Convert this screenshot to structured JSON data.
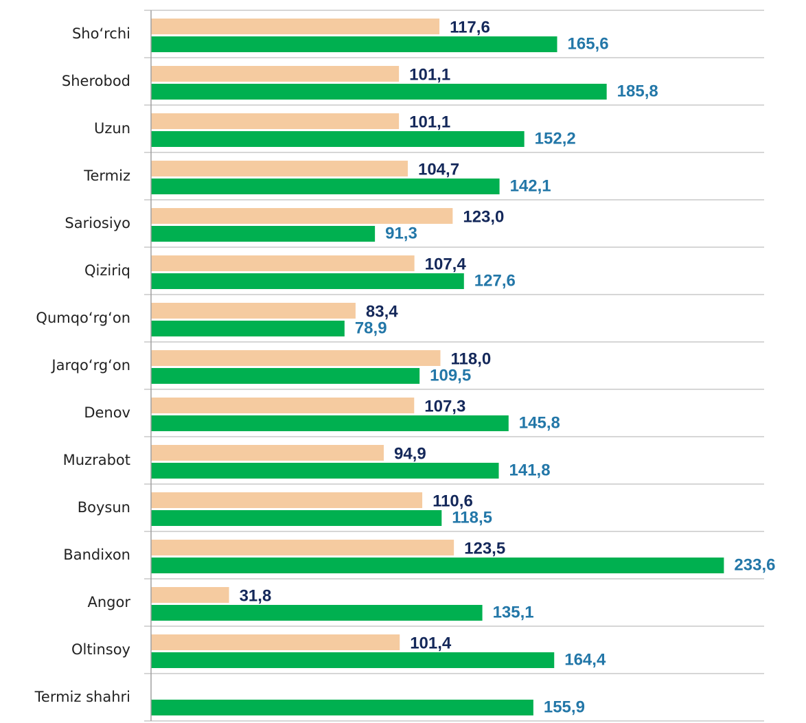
{
  "chart_data": {
    "type": "bar",
    "orientation": "horizontal",
    "categories": [
      "Sho‘rchi",
      "Sherobod",
      "Uzun",
      "Termiz",
      "Sariosiyo",
      "Qiziriq",
      "Qumqo‘rg‘on",
      "Jarqo‘rg‘on",
      "Denov",
      "Muzrabot",
      "Boysun",
      "Bandixon",
      "Angor",
      "Oltinsoy",
      "Termiz shahri"
    ],
    "series": [
      {
        "color": "#f5cba0",
        "label_color": "#14285a",
        "values": [
          117.6,
          101.1,
          101.1,
          104.7,
          123.0,
          107.4,
          83.4,
          118.0,
          107.3,
          94.9,
          110.6,
          123.5,
          31.8,
          101.4,
          null
        ],
        "value_labels": [
          "117,6",
          "101,1",
          "101,1",
          "104,7",
          "123,0",
          "107,4",
          "83,4",
          "118,0",
          "107,3",
          "94,9",
          "110,6",
          "123,5",
          "31,8",
          "101,4",
          null
        ]
      },
      {
        "color": "#00b050",
        "label_color": "#2377a8",
        "values": [
          165.6,
          185.8,
          152.2,
          142.1,
          91.3,
          127.6,
          78.9,
          109.5,
          145.8,
          141.8,
          118.5,
          233.6,
          135.1,
          164.4,
          155.9
        ],
        "value_labels": [
          "165,6",
          "185,8",
          "152,2",
          "142,1",
          "91,3",
          "127,6",
          "78,9",
          "109,5",
          "145,8",
          "141,8",
          "118,5",
          "233,6",
          "135,1",
          "164,4",
          "155,9"
        ]
      }
    ],
    "xlim": [
      0,
      250
    ],
    "grid": true
  }
}
